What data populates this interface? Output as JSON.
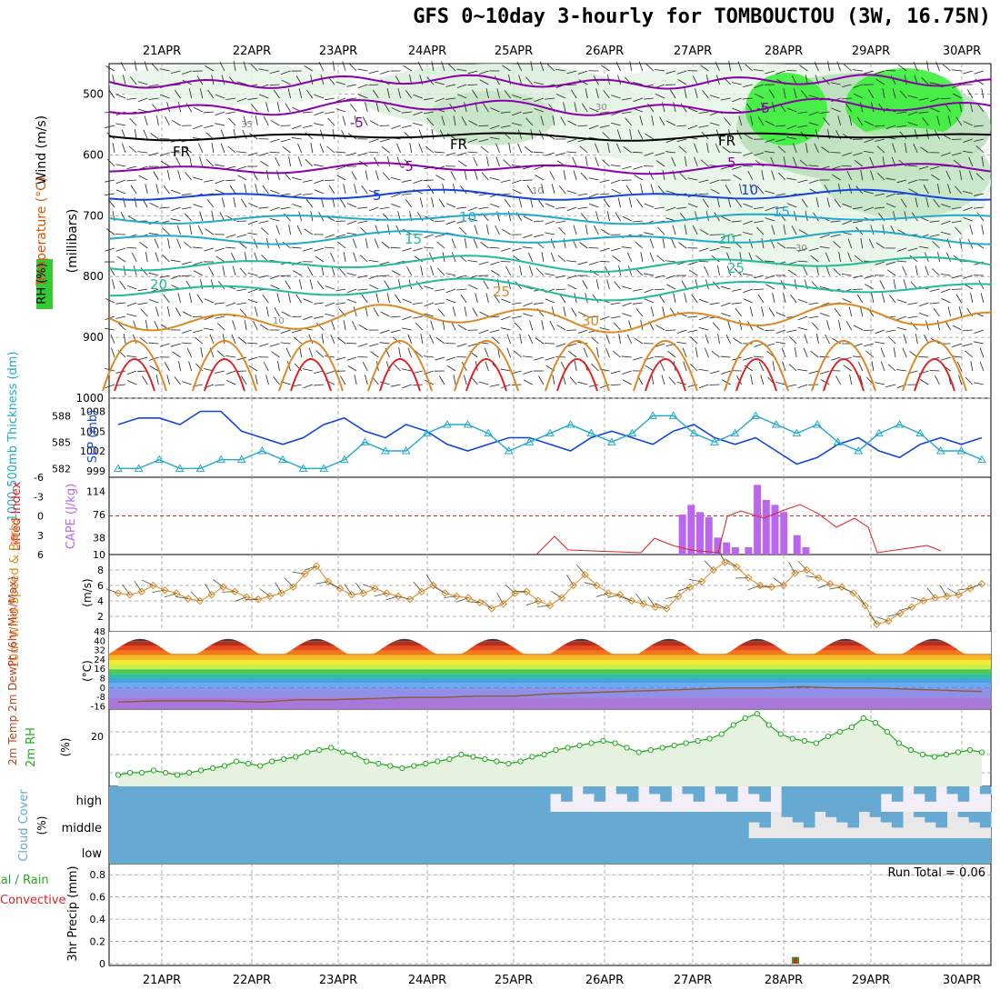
{
  "title": "GFS 0~10day 3-hourly for TOMBOUCTOU (3W, 16.75N)",
  "dates": [
    "21APR",
    "22APR",
    "23APR",
    "24APR",
    "25APR",
    "26APR",
    "27APR",
    "28APR",
    "29APR",
    "30APR"
  ],
  "colors": {
    "purple": "#8800aa",
    "blue": "#1144dd",
    "cyan": "#22aacc",
    "teal": "#22bb99",
    "orange": "#dd8822",
    "red": "#dd2222",
    "green": "#22aa22",
    "cloud": "#66aad4",
    "cape": "#bb66ee"
  },
  "panels": {
    "upper": {
      "ylabel_wind": "Wind (m/s)",
      "ylabel_temp": "Temperature (°C)",
      "ylabel_rh": "RH (%)",
      "ylabel_unit": "(millibars)",
      "ticks": [
        "500",
        "600",
        "700",
        "800",
        "900",
        "1000"
      ],
      "contour_labels": [
        "-5",
        "FR",
        "FR",
        "FR",
        "-5",
        "-5",
        "5",
        "5",
        "10",
        "10",
        "15",
        "15",
        "20",
        "20",
        "25",
        "25",
        "30",
        "35",
        "10",
        "10",
        "30",
        "30",
        "30"
      ]
    },
    "slp": {
      "ylabel_left": "1000-500mb Thickness (dm)",
      "ylabel_right": "SLP (mb)",
      "left_ticks": [
        "588",
        "585",
        "582"
      ],
      "right_ticks": [
        "1008",
        "1005",
        "1002",
        "999"
      ]
    },
    "cape": {
      "ylabel_left": "Lifted Index",
      "ylabel_right": "CAPE (J/kg)",
      "left_ticks": [
        "-6",
        "-3",
        "0",
        "3",
        "6"
      ],
      "right_ticks": [
        "114",
        "76",
        "38",
        "10"
      ]
    },
    "wind10": {
      "ylabel": "10m Wind Speed & Barbs",
      "unit": "(m/s)",
      "ticks": [
        "8",
        "6",
        "4",
        "2"
      ]
    },
    "temp2m": {
      "ylabel": "2m Temp 2m DewPt (6hr Min/Max)",
      "unit": "(°C)",
      "ticks": [
        "48",
        "40",
        "32",
        "24",
        "16",
        "8",
        "0",
        "-8",
        "-16"
      ]
    },
    "rh2m": {
      "ylabel": "2m RH",
      "unit": "(%)",
      "ticks": [
        "20"
      ]
    },
    "cloud": {
      "ylabel": "Cloud Cover",
      "unit": "(%)",
      "ticks": [
        "high",
        "middle",
        "low"
      ]
    },
    "precip": {
      "ylabel": "3hr Precip (mm)",
      "ylabel_total": "Total / Rain",
      "ylabel_conv": "Convective",
      "ticks": [
        "0.8",
        "0.6",
        "0.4",
        "0.2",
        "0"
      ],
      "run_total": "Run Total = 0.06"
    }
  },
  "chart_data": [
    {
      "type": "line",
      "title": "GFS 0~10day 3-hourly for TOMBOUCTOU (3W, 16.75N)",
      "x_labels": [
        "21APR",
        "22APR",
        "23APR",
        "24APR",
        "25APR",
        "26APR",
        "27APR",
        "28APR",
        "29APR",
        "30APR"
      ],
      "series": [
        {
          "name": "SLP (mb)",
          "values": [
            1006,
            1007,
            1007,
            1006,
            1008,
            1008,
            1005,
            1004,
            1003,
            1004,
            1006,
            1007,
            1005,
            1004,
            1006,
            1005,
            1003,
            1002,
            1003,
            1004,
            1004,
            1003,
            1002,
            1004,
            1005,
            1004,
            1003,
            1005,
            1006,
            1004,
            1003,
            1004,
            1002,
            1000,
            1001,
            1003,
            1004,
            1002,
            1001,
            1003,
            1004,
            1003,
            1004
          ]
        },
        {
          "name": "1000-500mb Thickness (dm)",
          "values": [
            582,
            582,
            583,
            582,
            582,
            583,
            583,
            584,
            583,
            582,
            582,
            583,
            585,
            584,
            584,
            586,
            587,
            587,
            586,
            584,
            585,
            586,
            587,
            586,
            585,
            586,
            588,
            588,
            586,
            585,
            586,
            588,
            587,
            586,
            587,
            585,
            584,
            586,
            587,
            586,
            584,
            584,
            583
          ]
        }
      ]
    },
    {
      "type": "bar",
      "ylabel": "CAPE (J/kg)",
      "x": [
        6.45,
        6.55,
        6.65,
        6.75,
        6.85,
        6.95,
        7.05,
        7.2,
        7.3,
        7.4,
        7.5,
        7.6,
        7.75,
        7.85
      ],
      "values": [
        76,
        92,
        80,
        72,
        38,
        30,
        22,
        22,
        125,
        100,
        92,
        80,
        42,
        22
      ]
    },
    {
      "type": "line",
      "ylabel": "10m Wind Speed",
      "values": [
        5.0,
        4.8,
        5.2,
        6.0,
        5.4,
        5.0,
        4.3,
        4.0,
        4.8,
        5.8,
        5.2,
        4.5,
        4.2,
        4.6,
        5.0,
        5.8,
        7.5,
        8.5,
        6.5,
        5.6,
        4.8,
        5.0,
        5.6,
        5.0,
        4.6,
        4.2,
        5.2,
        6.0,
        5.0,
        4.6,
        4.4,
        3.8,
        3.0,
        3.6,
        5.0,
        5.2,
        4.0,
        3.4,
        4.4,
        6.0,
        7.4,
        6.0,
        5.0,
        4.8,
        4.0,
        3.6,
        3.2,
        3.0,
        4.6,
        5.8,
        6.5,
        8.0,
        9.0,
        8.4,
        7.0,
        6.0,
        5.8,
        6.0,
        7.6,
        8.0,
        7.0,
        6.2,
        5.8,
        5.0,
        3.4,
        1.0,
        1.4,
        2.4,
        3.2,
        4.0,
        4.4,
        4.6,
        4.8,
        5.6,
        6.2
      ]
    },
    {
      "type": "area",
      "ylabel": "2m Temp",
      "max_values": [
        38,
        39,
        40,
        41,
        42,
        42,
        43,
        42,
        43,
        43,
        42,
        42,
        42,
        43,
        42,
        42,
        41,
        40
      ],
      "min_values": [
        26,
        26,
        27,
        27,
        27,
        28,
        27,
        27,
        28,
        27,
        27,
        28,
        28,
        28,
        27,
        28,
        27,
        27
      ],
      "dewpt_values": [
        -12,
        -11,
        -11,
        -11,
        -12,
        -10,
        -10,
        -9,
        -8,
        -8,
        -7,
        -7,
        -5,
        -4,
        -3,
        -2,
        -1,
        0,
        0,
        1,
        0,
        0,
        -1,
        -2,
        -3
      ]
    },
    {
      "type": "line",
      "ylabel": "2m RH",
      "values": [
        3,
        4,
        4,
        5,
        4,
        3,
        4,
        5,
        6,
        7,
        9,
        8,
        7,
        9,
        10,
        11,
        13,
        14,
        15,
        13,
        12,
        9,
        8,
        7,
        6,
        7,
        8,
        9,
        10,
        12,
        11,
        10,
        9,
        8,
        9,
        11,
        12,
        14,
        15,
        16,
        17,
        18,
        17,
        15,
        13,
        14,
        15,
        16,
        17,
        18,
        19,
        21,
        25,
        28,
        30,
        25,
        21,
        19,
        18,
        17,
        20,
        22,
        24,
        28,
        26,
        22,
        17,
        14,
        12,
        11,
        12,
        13,
        14,
        13
      ]
    },
    {
      "type": "bar",
      "ylabel": "3hr Precip (mm)",
      "x_labels": [
        "28APR"
      ],
      "values": [
        0.06
      ],
      "ylim": [
        0,
        0.9
      ]
    }
  ]
}
